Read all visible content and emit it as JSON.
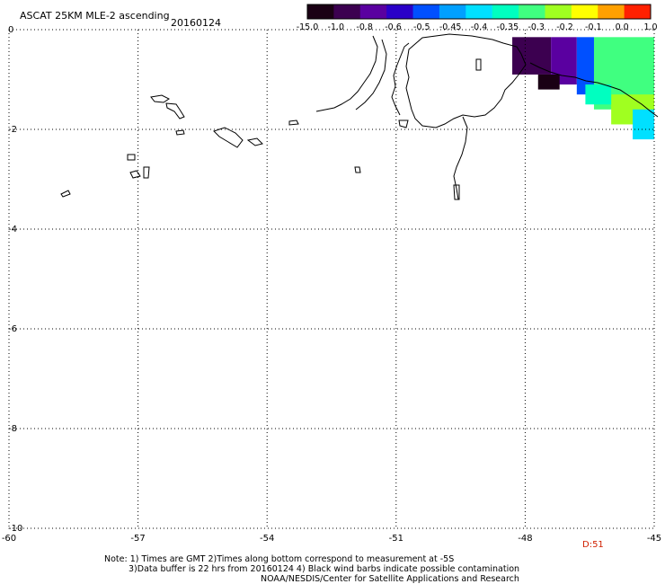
{
  "chart_data": {
    "type": "heatmap",
    "title": "ASCAT 25KM MLE-2 ascending",
    "date": "20160124",
    "colorbar": {
      "tick_labels": [
        "-15.0",
        "-1.0",
        "-0.8",
        "-0.6",
        "-0.5",
        "-0.45",
        "-0.4",
        "-0.35",
        "-0.3",
        "-0.2",
        "-0.1",
        "0.0",
        "1.0"
      ],
      "colors": [
        "#1a0014",
        "#3c0050",
        "#5a00a0",
        "#2a00c8",
        "#0050ff",
        "#00a0ff",
        "#00e0ff",
        "#00ffc0",
        "#40ff80",
        "#a0ff20",
        "#ffff00",
        "#ffa000",
        "#ff2000"
      ]
    },
    "x_axis": {
      "range": [
        -60,
        -45
      ],
      "ticks": [
        -60,
        -57,
        -54,
        -51,
        -48,
        -45
      ],
      "tick_labels": [
        "-60",
        "-57",
        "-54",
        "-51",
        "-48",
        "-45"
      ]
    },
    "y_axis": {
      "range": [
        0,
        -10
      ],
      "ticks": [
        0,
        -2,
        -4,
        -6,
        -8,
        -10
      ],
      "tick_labels": [
        "0",
        "-2",
        "-4",
        "-6",
        "-8",
        "-10"
      ]
    },
    "grid": true,
    "data_region": {
      "description_values": "MLE values concentrated in the top-right corner of the map",
      "x_range": [
        -48.3,
        -45
      ],
      "y_range": [
        0,
        -2.2
      ],
      "dominant_levels": [
        "-15.0",
        "-1.0",
        "-0.8",
        "-0.3",
        "-0.2"
      ]
    },
    "annotation": "D:51"
  },
  "annotation_color": "#d02000",
  "notes": {
    "line1": "Note: 1) Times are GMT 2)Times along bottom correspond to measurement at -5S",
    "line2": "3)Data buffer is 22 hrs from 20160124 4) Black wind barbs indicate possible contamination",
    "line3": "NOAA/NESDIS/Center for Satellite Applications and Research"
  }
}
